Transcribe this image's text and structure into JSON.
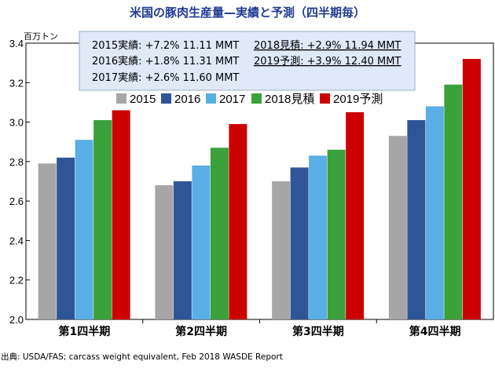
{
  "chart_data": {
    "type": "bar",
    "title": "米国の豚肉生産量—実績と予測（四半期毎）",
    "ylabel": "百万トン",
    "ylim": [
      2.0,
      3.4
    ],
    "yticks": [
      "2.0",
      "2.2",
      "2.4",
      "2.6",
      "2.8",
      "3.0",
      "3.2",
      "3.4"
    ],
    "categories": [
      "第1四半期",
      "第2四半期",
      "第3四半期",
      "第4四半期"
    ],
    "series": [
      {
        "name": "2015",
        "color": "#a6a6a6",
        "values": [
          2.79,
          2.68,
          2.7,
          2.93
        ]
      },
      {
        "name": "2016",
        "color": "#2e5597",
        "values": [
          2.82,
          2.7,
          2.77,
          3.01
        ]
      },
      {
        "name": "2017",
        "color": "#5aaee6",
        "values": [
          2.91,
          2.78,
          2.83,
          3.08
        ]
      },
      {
        "name": "2018見積",
        "color": "#3ba13b",
        "values": [
          3.01,
          2.87,
          2.86,
          3.19
        ]
      },
      {
        "name": "2019予測",
        "color": "#cc0000",
        "values": [
          3.06,
          2.99,
          3.05,
          3.32
        ]
      }
    ],
    "legend_position": "top",
    "grid": false,
    "summary": [
      {
        "text": "2015実績: +7.2% 11.11 MMT",
        "underline": false
      },
      {
        "text": "2018見積: +2.9% 11.94 MMT",
        "underline": true
      },
      {
        "text": "2016実績: +1.8% 11.31 MMT",
        "underline": false
      },
      {
        "text": "2019予測: +3.9% 12.40 MMT",
        "underline": true
      },
      {
        "text": "2017実績: +2.6% 11.60 MMT",
        "underline": false
      }
    ],
    "source": "出典: USDA/FAS; carcass weight equivalent, Feb 2018 WASDE Report"
  }
}
